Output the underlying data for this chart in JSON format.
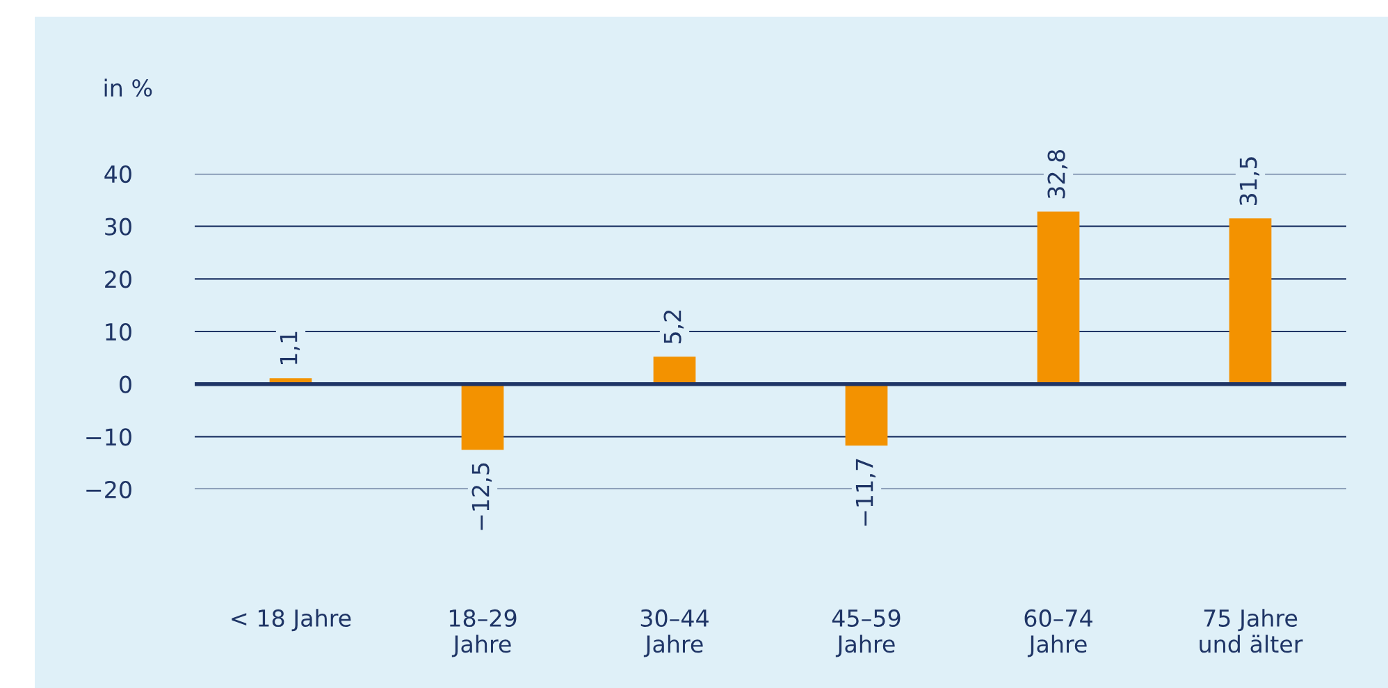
{
  "chart_data": {
    "type": "bar",
    "ylabel": "in %",
    "categories": [
      "< 18 Jahre",
      "18–29\nJahre",
      "30–44\nJahre",
      "45–59\nJahre",
      "60–74\nJahre",
      "75 Jahre\nund älter"
    ],
    "values": [
      1.1,
      -12.5,
      5.2,
      -11.7,
      32.8,
      31.5
    ],
    "value_labels": [
      "1,1",
      "−12,5",
      "5,2",
      "−11,7",
      "32,8",
      "31,5"
    ],
    "color": "#f39200",
    "ylim": [
      -20,
      40
    ],
    "yticks": [
      {
        "value": -20,
        "label": "−20"
      },
      {
        "value": -10,
        "label": "−10"
      },
      0,
      10,
      20,
      30,
      40
    ],
    "grid": "y",
    "legend": false,
    "ref_lines": [
      {
        "axis": "y",
        "value": 0,
        "color": "#1f3566"
      }
    ]
  }
}
